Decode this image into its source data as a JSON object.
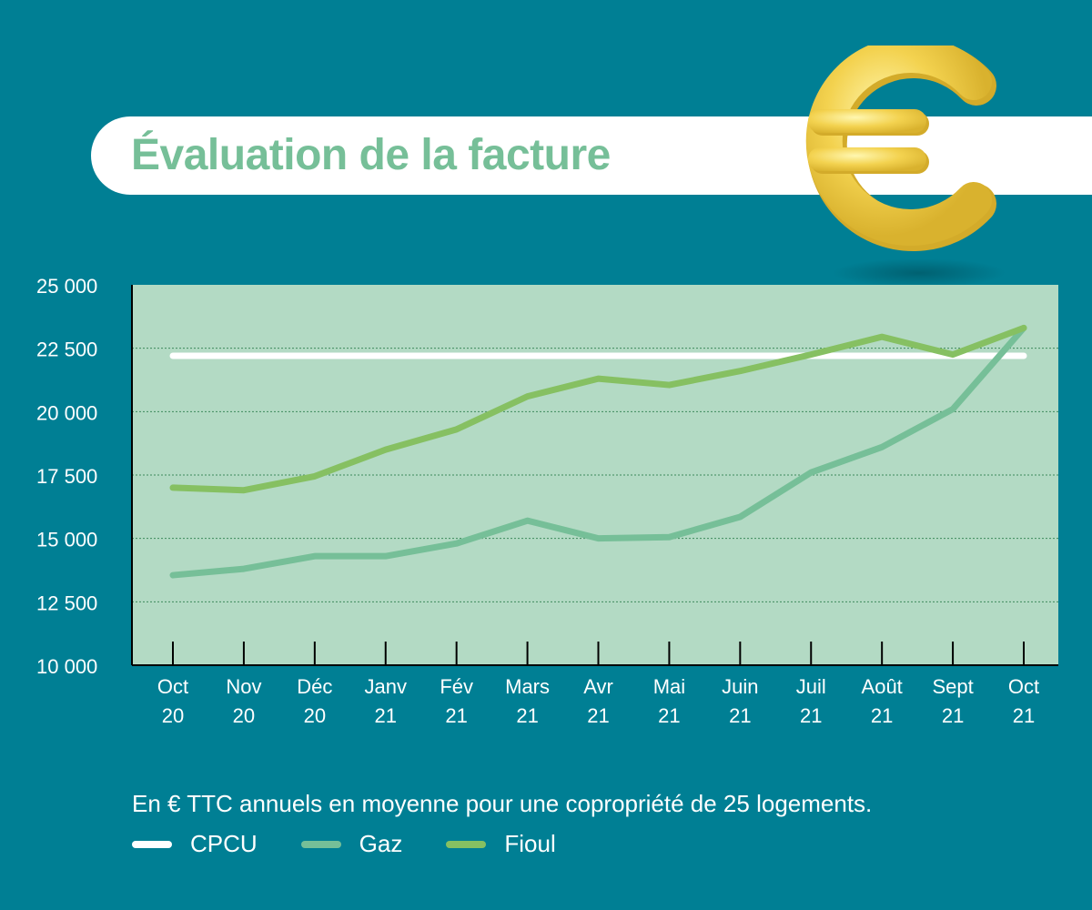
{
  "header": {
    "title": "Évaluation de la facture"
  },
  "decoration": {
    "icon": "euro-icon",
    "icon_color": "#f3d24f"
  },
  "colors": {
    "background": "#007f94",
    "plot_area": "#b3dac4",
    "cpcu": "#ffffff",
    "gaz": "#76bf98",
    "fioul": "#86c062",
    "title": "#76bf98"
  },
  "chart_data": {
    "type": "line",
    "categories": [
      [
        "Oct",
        "20"
      ],
      [
        "Nov",
        "20"
      ],
      [
        "Déc",
        "20"
      ],
      [
        "Janv",
        "21"
      ],
      [
        "Fév",
        "21"
      ],
      [
        "Mars",
        "21"
      ],
      [
        "Avr",
        "21"
      ],
      [
        "Mai",
        "21"
      ],
      [
        "Juin",
        "21"
      ],
      [
        "Juil",
        "21"
      ],
      [
        "Août",
        "21"
      ],
      [
        "Sept",
        "21"
      ],
      [
        "Oct",
        "21"
      ]
    ],
    "ylim": [
      10000,
      25000
    ],
    "yticks": [
      10000,
      12500,
      15000,
      17500,
      20000,
      22500,
      25000
    ],
    "ytick_labels": [
      "10 000",
      "12 500",
      "15 000",
      "17 500",
      "20 000",
      "22 500",
      "25 000"
    ],
    "grid": true,
    "series": [
      {
        "name": "CPCU",
        "color": "#ffffff",
        "values": [
          22200,
          22200,
          22200,
          22200,
          22200,
          22200,
          22200,
          22200,
          22200,
          22200,
          22200,
          22200,
          22200
        ]
      },
      {
        "name": "Gaz",
        "color": "#76bf98",
        "values": [
          13550,
          13800,
          14300,
          14300,
          14800,
          15700,
          15000,
          15050,
          15850,
          17600,
          18600,
          20100,
          23300
        ]
      },
      {
        "name": "Fioul",
        "color": "#86c062",
        "values": [
          17000,
          16900,
          17450,
          18500,
          19300,
          20600,
          21300,
          21050,
          21600,
          22250,
          22950,
          22250,
          23300
        ]
      }
    ],
    "note": "En € TTC annuels en moyenne pour une copropriété de 25 logements."
  }
}
